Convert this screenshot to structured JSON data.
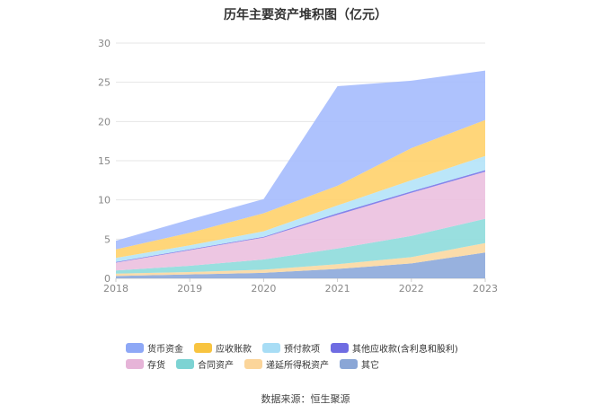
{
  "chart_data": {
    "type": "area",
    "stacked": true,
    "title": "历年主要资产堆积图（亿元）",
    "categories": [
      "2018",
      "2019",
      "2020",
      "2021",
      "2022",
      "2023"
    ],
    "ylim": [
      0,
      30
    ],
    "yticks": [
      0,
      5,
      10,
      15,
      20,
      25,
      30
    ],
    "grid": true,
    "legend_position": "bottom",
    "series": [
      {
        "name": "其它",
        "color": "#8eaadb",
        "values": [
          0.3,
          0.5,
          0.7,
          1.2,
          1.9,
          3.3
        ]
      },
      {
        "name": "递延所得税资产",
        "color": "#fbd9a3",
        "values": [
          0.3,
          0.3,
          0.4,
          0.6,
          0.8,
          1.2
        ]
      },
      {
        "name": "合同资产",
        "color": "#90dcdc",
        "values": [
          0.4,
          0.8,
          1.3,
          2.0,
          2.7,
          3.1
        ]
      },
      {
        "name": "存货",
        "color": "#ecc1e0",
        "values": [
          1.0,
          2.0,
          2.8,
          4.3,
          5.5,
          6.0
        ]
      },
      {
        "name": "其他应收款(含利息和股利)",
        "color": "#7b78e8",
        "values": [
          0.1,
          0.1,
          0.1,
          0.2,
          0.2,
          0.2
        ]
      },
      {
        "name": "预付款项",
        "color": "#b5e4f8",
        "values": [
          0.5,
          0.5,
          0.7,
          1.0,
          1.4,
          1.8
        ]
      },
      {
        "name": "应收账款",
        "color": "#ffd26f",
        "values": [
          1.1,
          1.6,
          2.3,
          2.5,
          4.1,
          4.6
        ]
      },
      {
        "name": "货币资金",
        "color": "#a7bdfd",
        "values": [
          1.1,
          1.7,
          1.8,
          12.7,
          8.6,
          6.3
        ]
      }
    ],
    "source": "数据来源：恒生聚源"
  },
  "legend_order": [
    "货币资金",
    "应收账款",
    "预付款项",
    "其他应收款(含利息和股利)",
    "存货",
    "合同资产",
    "递延所得税资产",
    "其它"
  ],
  "legend_colors": {
    "货币资金": "#8ea8f6",
    "应收账款": "#f8c440",
    "预付款项": "#a8ddf5",
    "其他应收款(含利息和股利)": "#6f6ce2",
    "存货": "#e6b4d8",
    "合同资产": "#7dd3d3",
    "递延所得税资产": "#fbd59a",
    "其它": "#8aa6d6"
  },
  "colors": {
    "axis_text": "#888888",
    "grid": "#e6e6e6",
    "axis_line": "#cccccc"
  }
}
